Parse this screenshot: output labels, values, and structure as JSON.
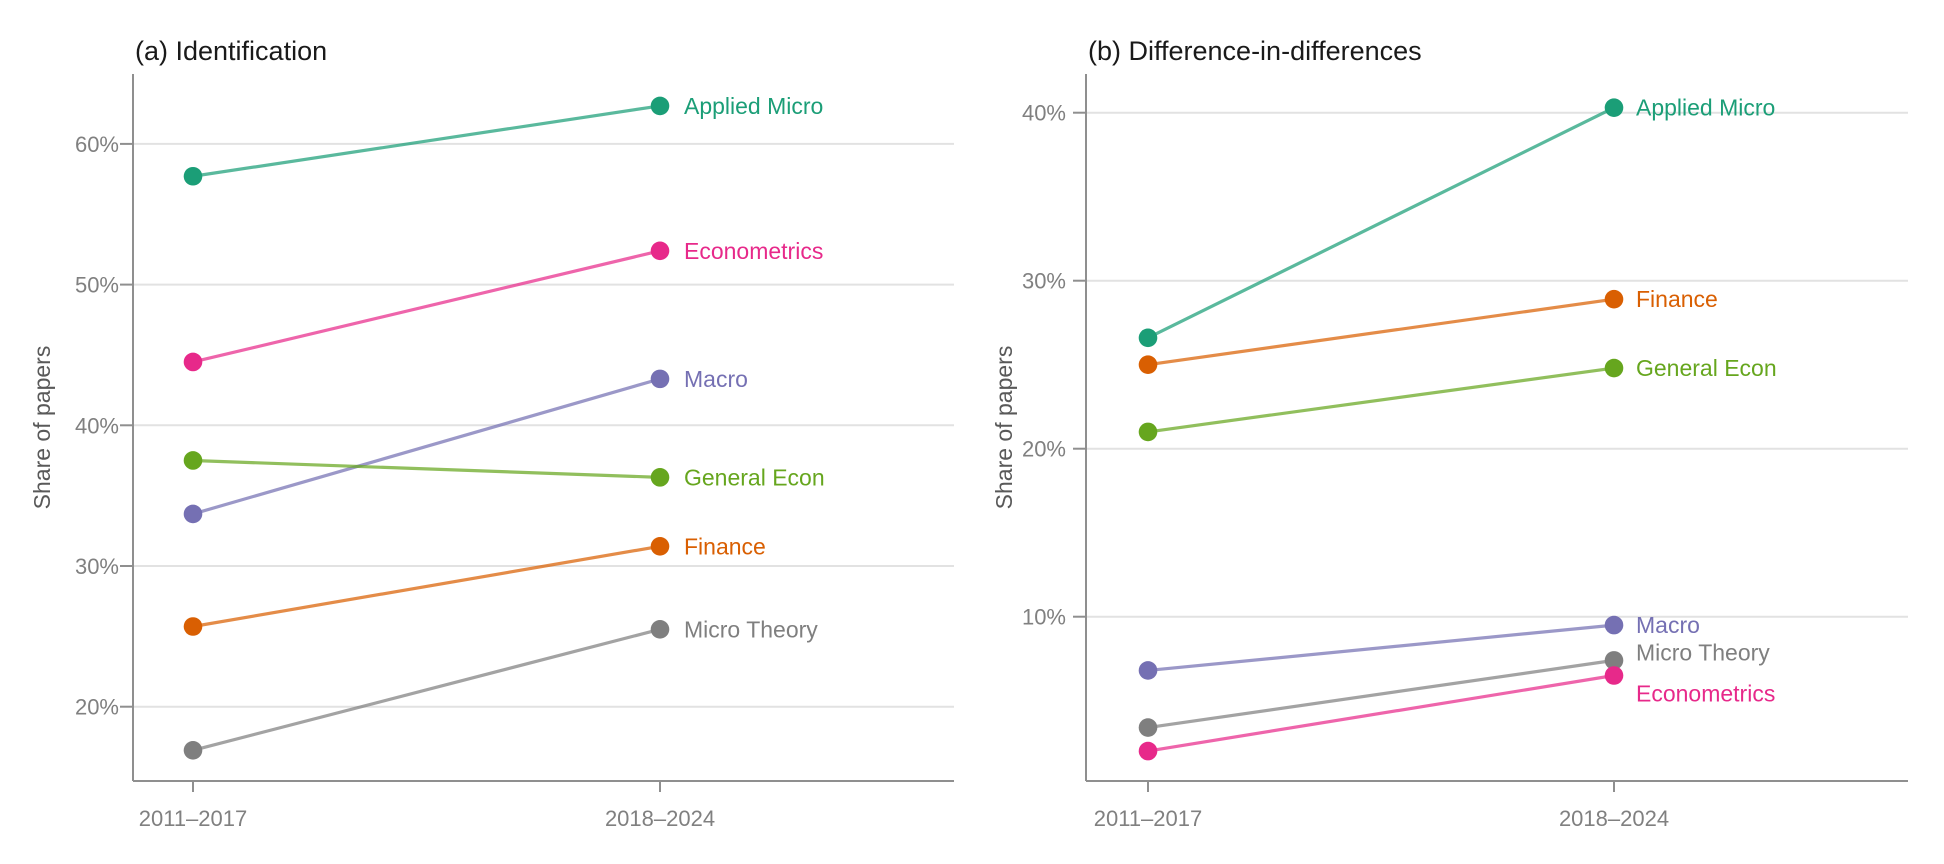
{
  "figure": {
    "background": "#ffffff",
    "style": {
      "axis_color": "#8f8f8f",
      "grid_color": "#e2e2e2",
      "tick_label_color": "#808080",
      "axis_title_color": "#595959",
      "panel_title_color": "#1a1a1a",
      "line_opacity": 0.72
    }
  },
  "chart_data": [
    {
      "type": "line",
      "subtype": "slope-chart",
      "panel": "a",
      "title": "(a) Identification",
      "xlabel": "",
      "ylabel": "Share of papers",
      "categories": [
        "2011–2017",
        "2018–2024"
      ],
      "grid": true,
      "legend": "direct-labels-right",
      "ticks_pct": [
        20,
        30,
        40,
        50,
        60
      ],
      "tick_labels": [
        "20%",
        "30%",
        "40%",
        "50%",
        "60%"
      ],
      "ylim_pct": [
        14.7,
        65.0
      ],
      "series": [
        {
          "name": "Applied Micro",
          "color": "#1B9E77",
          "values_pct": [
            57.7,
            62.7
          ],
          "label_dy": 0
        },
        {
          "name": "Econometrics",
          "color": "#E7298A",
          "values_pct": [
            44.5,
            52.4
          ],
          "label_dy": 0
        },
        {
          "name": "Macro",
          "color": "#7570B3",
          "values_pct": [
            33.7,
            43.3
          ],
          "label_dy": 0
        },
        {
          "name": "General Econ",
          "color": "#66A61E",
          "values_pct": [
            37.5,
            36.3
          ],
          "label_dy": 0
        },
        {
          "name": "Finance",
          "color": "#D95F02",
          "values_pct": [
            25.7,
            31.4
          ],
          "label_dy": 0
        },
        {
          "name": "Micro Theory",
          "color": "#7F7F7F",
          "values_pct": [
            16.9,
            25.5
          ],
          "label_dy": 0
        }
      ]
    },
    {
      "type": "line",
      "subtype": "slope-chart",
      "panel": "b",
      "title": "(b) Difference-in-differences",
      "xlabel": "",
      "ylabel": "Share of papers",
      "categories": [
        "2011–2017",
        "2018–2024"
      ],
      "grid": true,
      "legend": "direct-labels-right",
      "ticks_pct": [
        10,
        20,
        30,
        40
      ],
      "tick_labels": [
        "10%",
        "20%",
        "30%",
        "40%"
      ],
      "ylim_pct": [
        0.2,
        42.4
      ],
      "series": [
        {
          "name": "Applied Micro",
          "color": "#1B9E77",
          "values_pct": [
            26.6,
            40.3
          ],
          "label_dy": 0
        },
        {
          "name": "Finance",
          "color": "#D95F02",
          "values_pct": [
            25.0,
            28.9
          ],
          "label_dy": 0
        },
        {
          "name": "General Econ",
          "color": "#66A61E",
          "values_pct": [
            21.0,
            24.8
          ],
          "label_dy": 0
        },
        {
          "name": "Macro",
          "color": "#7570B3",
          "values_pct": [
            6.8,
            9.5
          ],
          "label_dy": 0
        },
        {
          "name": "Micro Theory",
          "color": "#7F7F7F",
          "values_pct": [
            3.4,
            7.4
          ],
          "label_dy": -8
        },
        {
          "name": "Econometrics",
          "color": "#E7298A",
          "values_pct": [
            2.0,
            6.5
          ],
          "label_dy": 18
        }
      ]
    }
  ]
}
